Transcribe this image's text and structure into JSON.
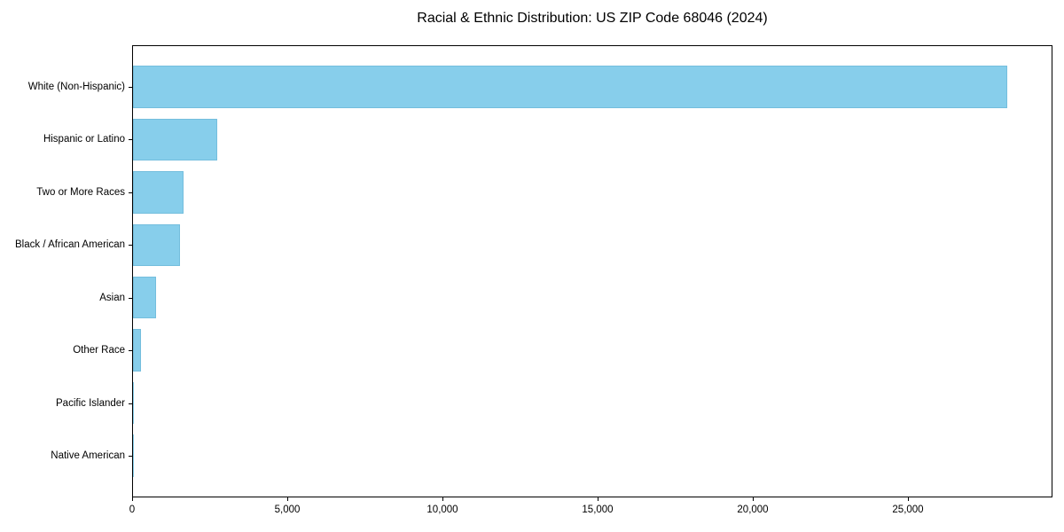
{
  "title": "Racial & Ethnic Distribution: US ZIP Code 68046 (2024)",
  "chart_data": {
    "type": "bar",
    "orientation": "horizontal",
    "title": "Racial & Ethnic Distribution: US ZIP Code 68046 (2024)",
    "xlabel": "",
    "ylabel": "",
    "categories": [
      "White (Non-Hispanic)",
      "Hispanic or Latino",
      "Two or More Races",
      "Black / African American",
      "Asian",
      "Other Race",
      "Pacific Islander",
      "Native American"
    ],
    "values": [
      28220,
      2715,
      1630,
      1515,
      745,
      270,
      25,
      8
    ],
    "xlim": [
      0,
      29657
    ],
    "xticks": [
      0,
      5000,
      10000,
      15000,
      20000,
      25000
    ],
    "xtick_labels": [
      "0",
      "5,000",
      "10,000",
      "15,000",
      "20,000",
      "25,000"
    ],
    "bar_color": "#87CEEB",
    "bar_edge_color": "#74bedd",
    "grid": false,
    "legend": null
  }
}
